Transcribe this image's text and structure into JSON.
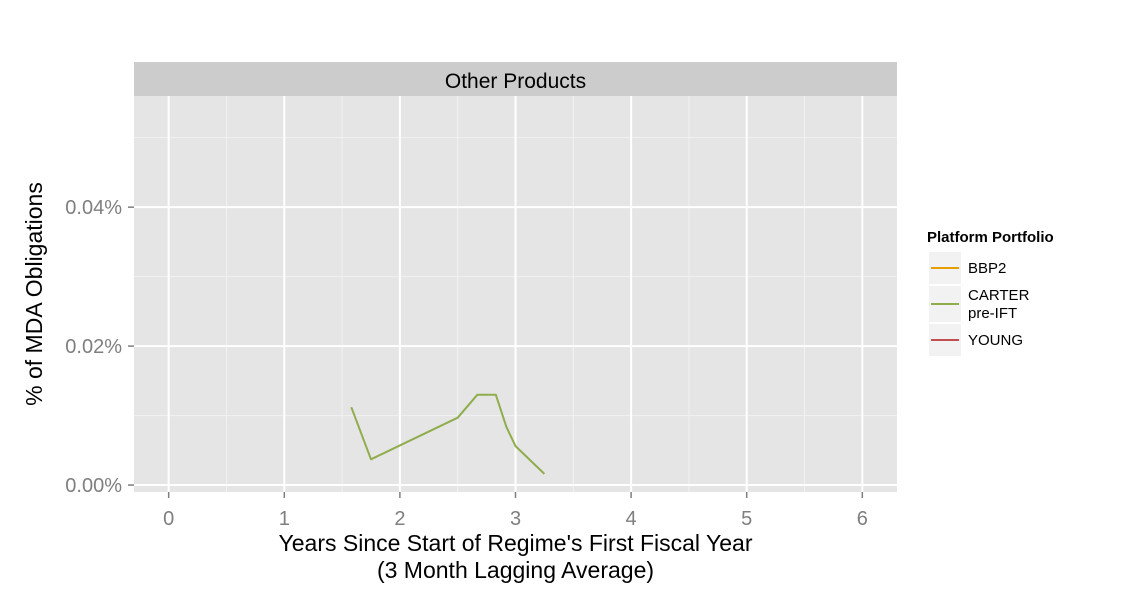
{
  "chart_data": {
    "type": "line",
    "panel_title": "Other Products",
    "xlabel_line1": "Years Since Start of Regime's First Fiscal Year",
    "xlabel_line2": "(3 Month Lagging Average)",
    "ylabel": "% of MDA Obligations",
    "xlim": [
      -0.3,
      6.3
    ],
    "ylim": [
      -1e-05,
      0.00056
    ],
    "x_ticks": [
      0,
      1,
      2,
      3,
      4,
      5,
      6
    ],
    "x_tick_labels": [
      "0",
      "1",
      "2",
      "3",
      "4",
      "5",
      "6"
    ],
    "y_ticks": [
      0,
      0.0002,
      0.0004
    ],
    "y_tick_labels": [
      "0.00%",
      "0.02%",
      "0.04%"
    ],
    "grid": true,
    "legend": {
      "title": "Platform Portfolio",
      "placement": "right",
      "entries": [
        {
          "label_lines": [
            "BBP2"
          ],
          "color": "#e69f00"
        },
        {
          "label_lines": [
            "CARTER",
            " pre-IFT"
          ],
          "color": "#8fad4d"
        },
        {
          "label_lines": [
            "YOUNG"
          ],
          "color": "#c0504d"
        }
      ]
    },
    "series": [
      {
        "name": "CARTER pre-IFT",
        "color": "#8fad4d",
        "x": [
          1.58,
          1.75,
          2.5,
          2.67,
          2.83,
          2.92,
          3.0,
          3.25
        ],
        "y": [
          0.000112,
          3.7e-05,
          9.7e-05,
          0.00013,
          0.00013,
          8.4e-05,
          5.6e-05,
          1.6e-05
        ]
      }
    ]
  }
}
